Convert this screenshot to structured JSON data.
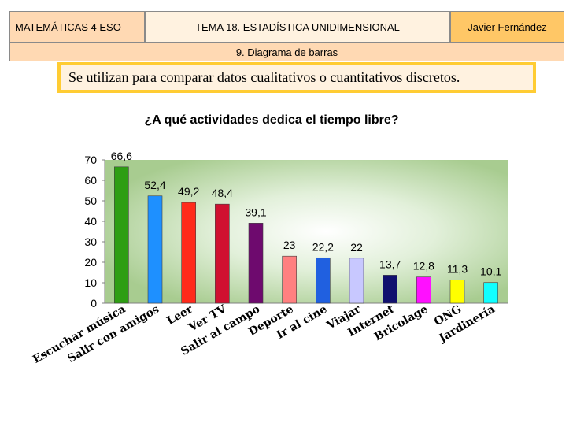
{
  "header": {
    "left": "MATEMÁTICAS 4 ESO",
    "center": "TEMA 18. ESTADÍSTICA UNIDIMENSIONAL",
    "right": "Javier Fernández",
    "section": "9. Diagrama de barras"
  },
  "note": "Se utilizan para comparar datos cualitativos o cuantitativos discretos.",
  "chart_data": {
    "type": "bar",
    "title": "¿A qué actividades dedica el tiempo libre?",
    "xlabel": "",
    "ylabel": "",
    "ylim": [
      0,
      70
    ],
    "yticks": [
      0,
      10,
      20,
      30,
      40,
      50,
      60,
      70
    ],
    "grid": false,
    "categories": [
      "Escuchar música",
      "Salir con amigos",
      "Leer",
      "Ver TV",
      "Salir al campo",
      "Deporte",
      "Ir al cine",
      "Viajar",
      "Internet",
      "Bricolage",
      "ONG",
      "Jardinería"
    ],
    "values": [
      66.6,
      52.4,
      49.2,
      48.4,
      39.1,
      23,
      22.2,
      22,
      13.7,
      12.8,
      11.3,
      10.1
    ],
    "value_labels": [
      "66,6",
      "52,4",
      "49,2",
      "48,4",
      "39,1",
      "23",
      "22,2",
      "22",
      "13,7",
      "12,8",
      "11,3",
      "10,1"
    ],
    "colors": [
      "#2e9e13",
      "#1e90ff",
      "#ff2a1a",
      "#d01030",
      "#6e0a6e",
      "#ff8080",
      "#2060e0",
      "#c8c8ff",
      "#10106e",
      "#ff10ff",
      "#ffff00",
      "#10ffff"
    ]
  }
}
